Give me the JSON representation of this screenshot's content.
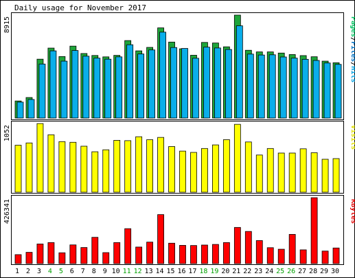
{
  "chart_data": {
    "type": "bar",
    "title": "Daily usage for November 2017",
    "categories": [
      "1",
      "2",
      "3",
      "4",
      "5",
      "6",
      "7",
      "8",
      "9",
      "10",
      "11",
      "12",
      "13",
      "14",
      "15",
      "16",
      "17",
      "18",
      "19",
      "20",
      "21",
      "22",
      "23",
      "24",
      "25",
      "26",
      "27",
      "28",
      "29",
      "30"
    ],
    "weekend_days": [
      "4",
      "5",
      "11",
      "12",
      "18",
      "19",
      "25",
      "26"
    ],
    "panels": [
      {
        "id": "hits",
        "max_label": "8915",
        "ymax": 8915,
        "legend": [
          {
            "text": "Pages",
            "color": "#00c060"
          },
          {
            "text": "/",
            "color": "#000000"
          },
          {
            "text": "Files",
            "color": "#0070c0"
          },
          {
            "text": "/",
            "color": "#000000"
          },
          {
            "text": "Hits",
            "color": "#00a0e0"
          }
        ],
        "series": [
          {
            "name": "Hits",
            "color": "#1ea53a",
            "values": [
              1480,
              1780,
              5100,
              6060,
              5330,
              6230,
              5590,
              5420,
              5300,
              5430,
              6710,
              5820,
              6120,
              7810,
              6580,
              6000,
              5440,
              6550,
              6500,
              6170,
              8915,
              5870,
              5730,
              5730,
              5630,
              5500,
              5410,
              5310,
              4930,
              4790
            ]
          },
          {
            "name": "Files",
            "color": "#0aaeea",
            "values": [
              1380,
              1610,
              4680,
              5820,
              4930,
              5850,
              5360,
              5190,
              5100,
              5300,
              6350,
              5550,
              5900,
              7440,
              6110,
              6030,
              5180,
              6140,
              6070,
              5940,
              7990,
              5540,
              5460,
              5480,
              5290,
              5190,
              5090,
              4990,
              4770,
              4650
            ]
          },
          {
            "name": "Pages",
            "color": "#1ea53a",
            "values": [
              0,
              0,
              0,
              0,
              0,
              0,
              0,
              0,
              0,
              0,
              0,
              0,
              0,
              0,
              0,
              0,
              0,
              0,
              0,
              0,
              0,
              0,
              0,
              0,
              0,
              0,
              0,
              0,
              0,
              0
            ]
          }
        ]
      },
      {
        "id": "visits",
        "max_label": "1052",
        "ymax": 1052,
        "legend": [
          {
            "text": "Visits",
            "color": "#e0e000"
          }
        ],
        "series": [
          {
            "name": "Visits",
            "color": "#ffff00",
            "values": [
              720,
              755,
              1052,
              880,
              775,
              765,
              705,
              620,
              650,
              795,
              790,
              850,
              805,
              840,
              700,
              630,
              610,
              670,
              725,
              805,
              1040,
              770,
              570,
              670,
              600,
              600,
              665,
              605,
              505,
              515
            ]
          }
        ]
      },
      {
        "id": "kbytes",
        "max_label": "426341",
        "ymax": 426341,
        "legend": [
          {
            "text": "KBytes",
            "color": "#e00000"
          }
        ],
        "series": [
          {
            "name": "KBytes",
            "color": "#ff0000",
            "values": [
              58000,
              73000,
              127000,
              136000,
              70000,
              121000,
              104000,
              170000,
              71000,
              136000,
              226000,
              107000,
              139000,
              317000,
              132000,
              118000,
              117000,
              120000,
              124000,
              136000,
              234000,
              208000,
              149000,
              103000,
              93000,
              189000,
              89000,
              426341,
              81000,
              101000
            ]
          }
        ]
      }
    ]
  }
}
